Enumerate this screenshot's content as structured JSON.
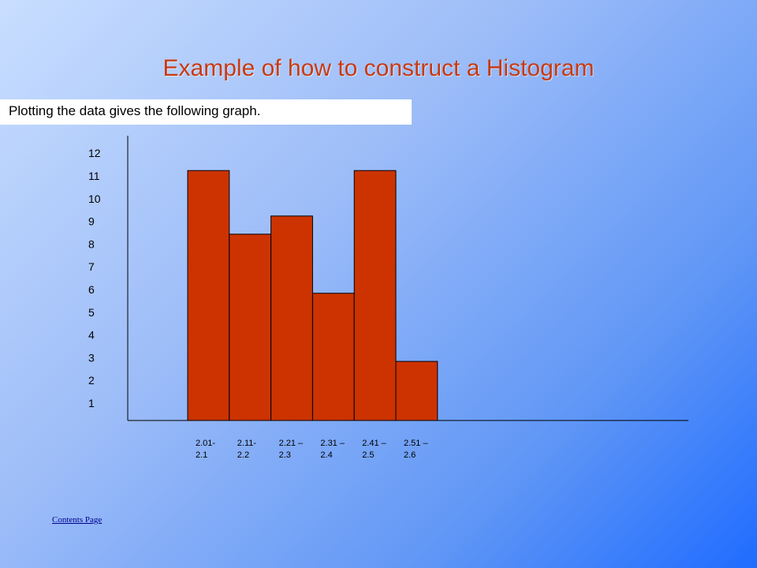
{
  "slide": {
    "title": "Example of how to construct a Histogram",
    "subtitle": "Plotting the data gives the following graph."
  },
  "chart_data": {
    "type": "bar",
    "categories": [
      [
        "2.01-",
        "2.1"
      ],
      [
        "2.11-",
        "2.2"
      ],
      [
        "2.21 –",
        "2.3"
      ],
      [
        "2.31 –",
        "2.4"
      ],
      [
        "2.41 –",
        "2.5"
      ],
      [
        "2.51 –",
        "2.6"
      ]
    ],
    "values": [
      11,
      8.2,
      9,
      5.6,
      11,
      2.6
    ],
    "yticks": [
      1,
      2,
      3,
      4,
      5,
      6,
      7,
      8,
      9,
      10,
      11,
      12
    ],
    "ylim": [
      0,
      12
    ],
    "bar_color": "#cc3300",
    "grid": false,
    "title": "",
    "xlabel": "",
    "ylabel": ""
  },
  "footer": {
    "contents_link": "Contents Page"
  },
  "colors": {
    "title": "#c83a12",
    "link": "#00008b"
  }
}
